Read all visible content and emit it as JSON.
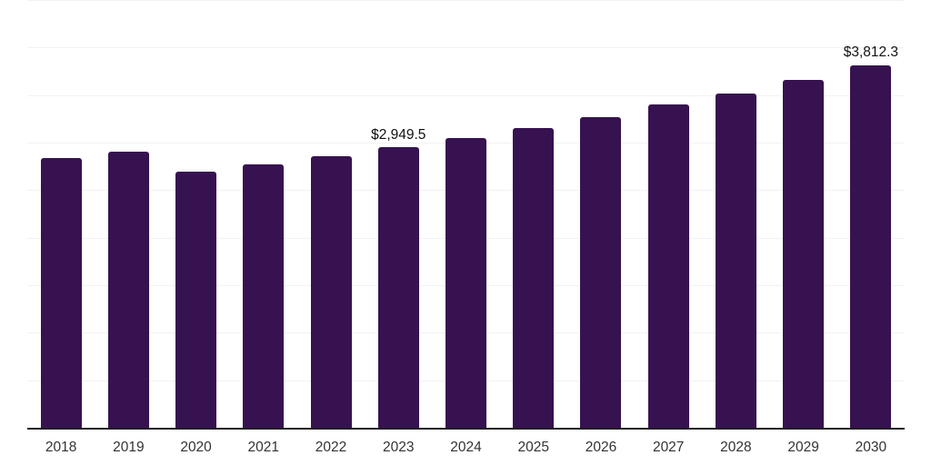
{
  "chart_data": {
    "type": "bar",
    "categories": [
      "2018",
      "2019",
      "2020",
      "2021",
      "2022",
      "2023",
      "2024",
      "2025",
      "2026",
      "2027",
      "2028",
      "2029",
      "2030"
    ],
    "values": [
      2837,
      2907,
      2691,
      2773,
      2856,
      2949.5,
      3045,
      3150,
      3264,
      3398,
      3519,
      3656,
      3812.3
    ],
    "value_labels": [
      {
        "index": 5,
        "text": "$2,949.5"
      },
      {
        "index": 12,
        "text": "$3,812.3"
      }
    ],
    "title": "",
    "xlabel": "",
    "ylabel": "",
    "ylim": [
      0,
      4500
    ],
    "grid_step": 500,
    "grid": "horizontal-only",
    "legend": "none",
    "bar_color": "#371250",
    "grid_color": "#f2f2f2",
    "axis_color": "#1f1f1f",
    "tick_label_color": "#333333",
    "value_label_color": "#111111"
  }
}
